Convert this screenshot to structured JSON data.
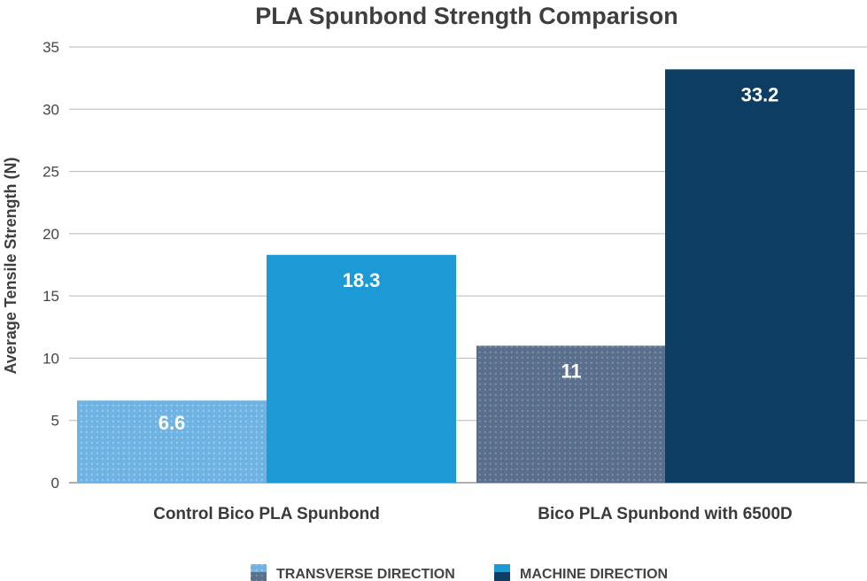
{
  "chart_data": {
    "type": "bar",
    "title": "PLA Spunbond Strength Comparison",
    "xlabel": "",
    "ylabel": "Average Tensile Strength (N)",
    "ylim": [
      0,
      35
    ],
    "yticks": [
      0,
      5,
      10,
      15,
      20,
      25,
      30,
      35
    ],
    "grid": true,
    "legend_placement": "bottom-center",
    "categories": [
      "Control Bico PLA Spunbond",
      "Bico PLA Spunbond with 6500D"
    ],
    "bars": [
      {
        "category": "Control Bico PLA Spunbond",
        "series": "TRANSVERSE DIRECTION",
        "value": 6.6,
        "label": "6.6",
        "color": "#6fb3e3",
        "pattern": true
      },
      {
        "category": "Control Bico PLA Spunbond",
        "series": "MACHINE DIRECTION",
        "value": 18.3,
        "label": "18.3",
        "color": "#1b9ad6",
        "pattern": false
      },
      {
        "category": "Bico PLA Spunbond with 6500D",
        "series": "TRANSVERSE DIRECTION",
        "value": 11,
        "label": "11",
        "color": "#596f8c",
        "pattern": true
      },
      {
        "category": "Bico PLA Spunbond with 6500D",
        "series": "MACHINE DIRECTION",
        "value": 33.2,
        "label": "33.2",
        "color": "#0e3d63",
        "pattern": false
      }
    ],
    "legend": [
      {
        "name": "TRANSVERSE DIRECTION",
        "top_color": "#6fb3e3",
        "bottom_color": "#596f8c",
        "pattern": true
      },
      {
        "name": "MACHINE DIRECTION",
        "top_color": "#1b9ad6",
        "bottom_color": "#0e3d63",
        "pattern": false
      }
    ]
  },
  "colors": {
    "grid": "#b7b7b7",
    "axis": "#7f7f7f",
    "title": "#3e3e3e",
    "data_label": "#ffffff"
  }
}
